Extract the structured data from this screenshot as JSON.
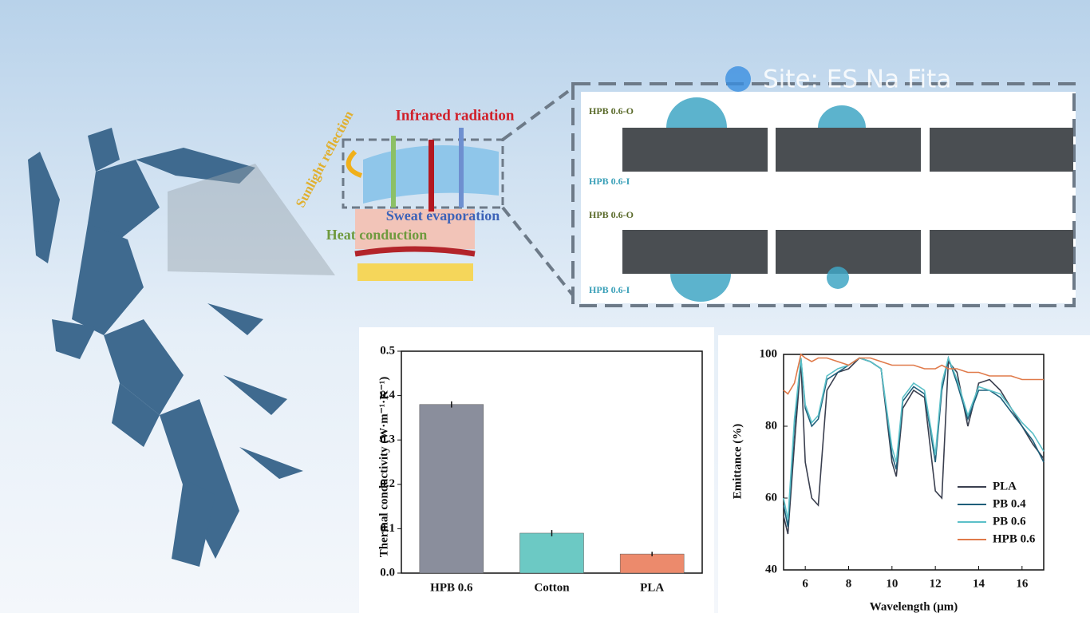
{
  "watermark": "Site: ES Na Fita",
  "diagram": {
    "sunlight": "Sunlight reflection",
    "infrared": "Infrared radiation",
    "sweat": "Sweat evaporation",
    "heat": "Heat conduction",
    "panel_labels": [
      "HPB 0.6-O",
      "HPB 0.6-I",
      "HPB 0.6-O",
      "HPB 0.6-I"
    ]
  },
  "chart_data": [
    {
      "type": "bar",
      "ylabel": "Thermal conductivity (W·m⁻¹·K⁻¹)",
      "categories": [
        "HPB 0.6",
        "Cotton",
        "PLA"
      ],
      "values": [
        0.38,
        0.09,
        0.043
      ],
      "errors": [
        0.007,
        0.007,
        0.005
      ],
      "colors": [
        "#8a8e9c",
        "#6cc9c4",
        "#ec8a6c"
      ],
      "ylim": [
        0,
        0.5
      ],
      "yticks": [
        {
          "value": 0,
          "label": "0.0"
        },
        0.1,
        0.2,
        0.3,
        0.4,
        0.5
      ]
    },
    {
      "type": "line",
      "xlabel": "Wavelength (μm)",
      "ylabel": "Emittance (%)",
      "x": [
        5,
        5.2,
        5.5,
        5.8,
        6.0,
        6.3,
        6.6,
        7.0,
        7.5,
        8.0,
        8.5,
        9.0,
        9.5,
        10.0,
        10.2,
        10.5,
        11.0,
        11.5,
        12.0,
        12.3,
        12.6,
        13.0,
        13.5,
        14.0,
        14.5,
        15.0,
        15.5,
        16.0,
        16.5,
        17
      ],
      "series": [
        {
          "name": "PLA",
          "color": "#3a3f4f",
          "values": [
            55,
            50,
            75,
            98,
            70,
            60,
            58,
            90,
            95,
            96,
            99,
            98,
            96,
            70,
            66,
            85,
            90,
            88,
            62,
            60,
            98,
            95,
            80,
            92,
            93,
            90,
            85,
            80,
            75,
            71
          ]
        },
        {
          "name": "PB 0.4",
          "color": "#1f5f7a",
          "values": [
            58,
            52,
            80,
            99,
            85,
            80,
            82,
            93,
            95,
            97,
            99,
            98,
            96,
            72,
            68,
            87,
            91,
            89,
            70,
            90,
            99,
            92,
            82,
            90,
            90,
            88,
            84,
            80,
            76,
            70
          ]
        },
        {
          "name": "PB 0.6",
          "color": "#5bc0c8",
          "values": [
            60,
            54,
            82,
            99,
            86,
            81,
            83,
            94,
            96,
            97,
            99,
            98,
            96,
            74,
            70,
            88,
            92,
            90,
            72,
            92,
            99,
            93,
            83,
            91,
            90,
            89,
            85,
            81,
            78,
            73
          ]
        },
        {
          "name": "HPB 0.6",
          "color": "#e07a4a",
          "values": [
            90,
            89,
            92,
            100,
            99,
            98,
            99,
            99,
            98,
            97,
            99,
            99,
            98,
            97,
            97,
            97,
            97,
            96,
            96,
            97,
            96,
            96,
            95,
            95,
            94,
            94,
            94,
            93,
            93,
            93
          ]
        }
      ],
      "xlim": [
        5,
        17
      ],
      "ylim": [
        40,
        100
      ],
      "xticks": [
        6,
        8,
        10,
        12,
        14,
        16
      ],
      "yticks": [
        40,
        60,
        80,
        100
      ]
    }
  ]
}
